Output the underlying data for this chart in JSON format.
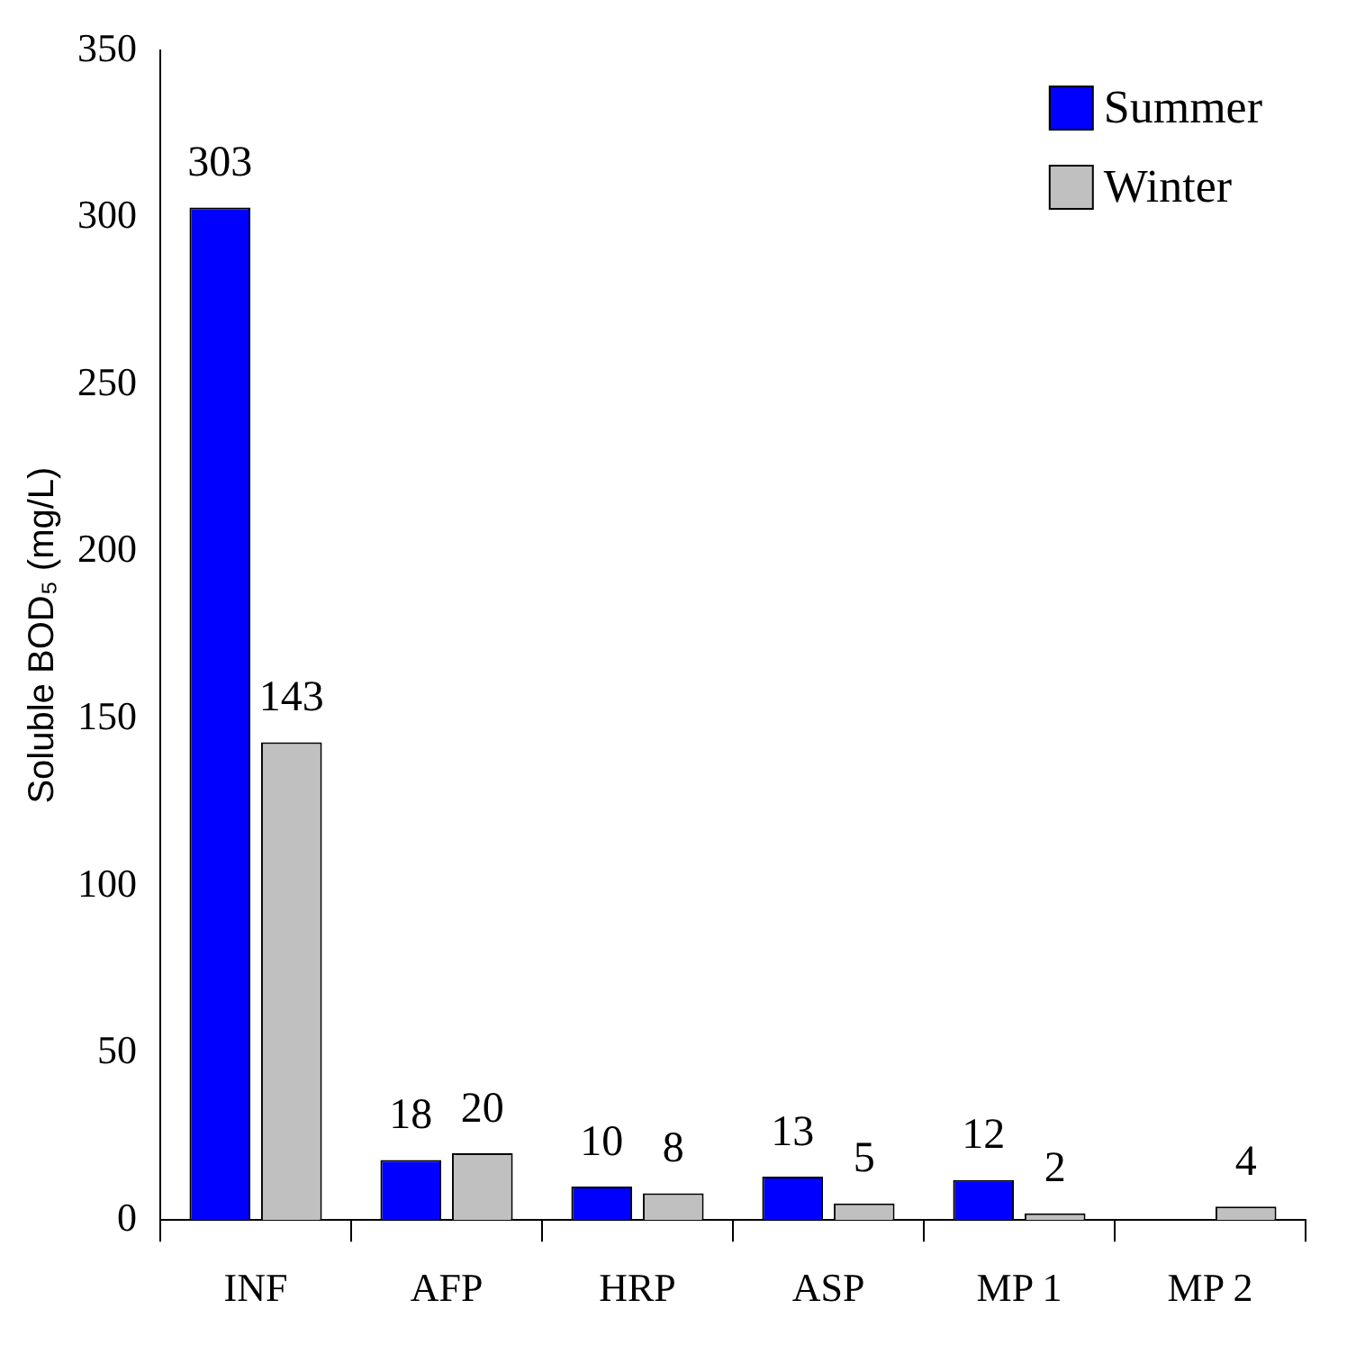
{
  "chart_data": {
    "type": "bar",
    "ylabel": "Soluble BOD₅ (mg/L)",
    "categories": [
      "INF",
      "AFP",
      "HRP",
      "ASP",
      "MP 1",
      "MP 2"
    ],
    "series": [
      {
        "name": "Summer",
        "color": "#0000ff",
        "values": [
          303,
          18,
          10,
          13,
          12,
          null
        ]
      },
      {
        "name": "Winter",
        "color": "#c0c0c0",
        "values": [
          143,
          20,
          8,
          5,
          2,
          4
        ]
      }
    ],
    "ylim": [
      0,
      350
    ],
    "yticks": [
      0,
      50,
      100,
      150,
      200,
      250,
      300,
      350
    ],
    "data_labels": true,
    "grid": false,
    "legend": "top right"
  }
}
